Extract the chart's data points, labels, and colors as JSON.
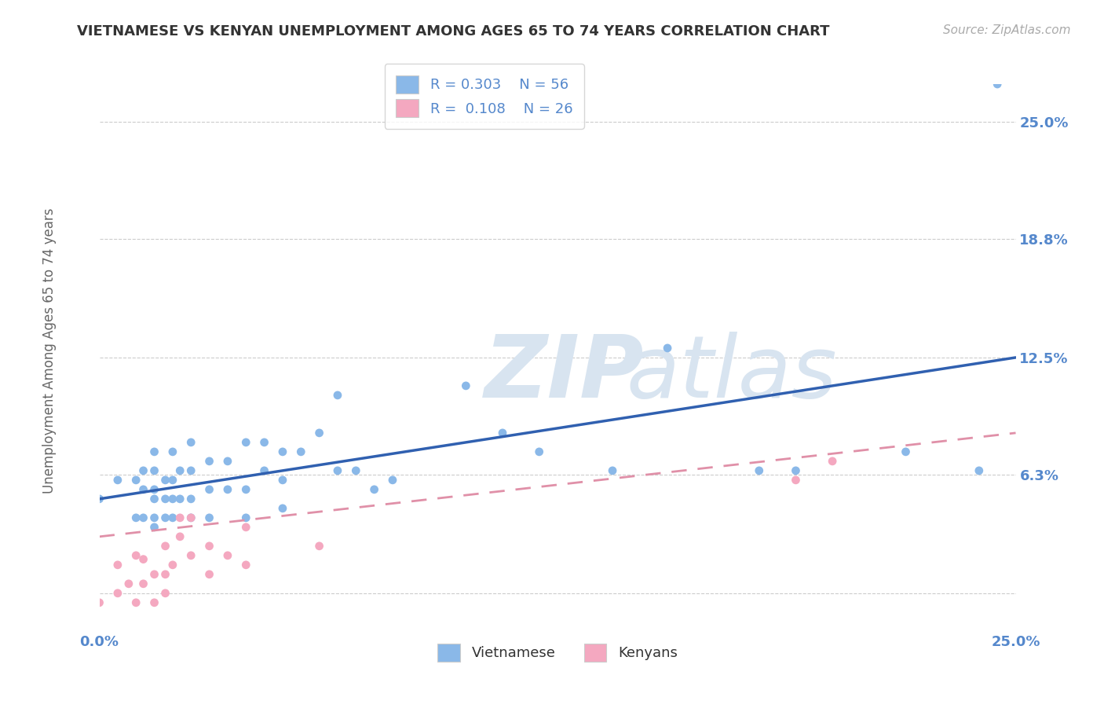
{
  "title": "VIETNAMESE VS KENYAN UNEMPLOYMENT AMONG AGES 65 TO 74 YEARS CORRELATION CHART",
  "source": "Source: ZipAtlas.com",
  "ylabel": "Unemployment Among Ages 65 to 74 years",
  "xlim": [
    0.0,
    0.25
  ],
  "ylim": [
    -0.02,
    0.27
  ],
  "xticks": [
    0.0,
    0.25
  ],
  "xticklabels": [
    "0.0%",
    "25.0%"
  ],
  "ytick_positions": [
    0.0,
    0.063,
    0.125,
    0.188,
    0.25
  ],
  "ytick_labels": [
    "",
    "6.3%",
    "12.5%",
    "18.8%",
    "25.0%"
  ],
  "background_color": "#ffffff",
  "viet_color": "#8ab8e8",
  "kenya_color": "#f4a8c0",
  "viet_line_color": "#3060b0",
  "kenya_line_color": "#e090a8",
  "viet_points_x": [
    0.0,
    0.005,
    0.01,
    0.01,
    0.012,
    0.012,
    0.012,
    0.015,
    0.015,
    0.015,
    0.015,
    0.015,
    0.015,
    0.018,
    0.018,
    0.018,
    0.02,
    0.02,
    0.02,
    0.02,
    0.022,
    0.022,
    0.025,
    0.025,
    0.025,
    0.025,
    0.03,
    0.03,
    0.03,
    0.035,
    0.035,
    0.04,
    0.04,
    0.04,
    0.045,
    0.045,
    0.05,
    0.05,
    0.05,
    0.055,
    0.06,
    0.065,
    0.065,
    0.07,
    0.075,
    0.08,
    0.1,
    0.11,
    0.12,
    0.14,
    0.155,
    0.18,
    0.19,
    0.22,
    0.24,
    0.245
  ],
  "viet_points_y": [
    0.05,
    0.06,
    0.04,
    0.06,
    0.04,
    0.055,
    0.065,
    0.035,
    0.04,
    0.05,
    0.055,
    0.065,
    0.075,
    0.04,
    0.05,
    0.06,
    0.04,
    0.05,
    0.06,
    0.075,
    0.05,
    0.065,
    0.04,
    0.05,
    0.065,
    0.08,
    0.04,
    0.055,
    0.07,
    0.055,
    0.07,
    0.04,
    0.055,
    0.08,
    0.065,
    0.08,
    0.045,
    0.06,
    0.075,
    0.075,
    0.085,
    0.065,
    0.105,
    0.065,
    0.055,
    0.06,
    0.11,
    0.085,
    0.075,
    0.065,
    0.13,
    0.065,
    0.065,
    0.075,
    0.065,
    0.27
  ],
  "kenya_points_x": [
    0.0,
    0.005,
    0.005,
    0.008,
    0.01,
    0.01,
    0.012,
    0.012,
    0.015,
    0.015,
    0.018,
    0.018,
    0.018,
    0.02,
    0.022,
    0.022,
    0.025,
    0.025,
    0.03,
    0.03,
    0.035,
    0.04,
    0.04,
    0.06,
    0.19,
    0.2
  ],
  "kenya_points_y": [
    -0.005,
    0.0,
    0.015,
    0.005,
    -0.005,
    0.02,
    0.005,
    0.018,
    -0.005,
    0.01,
    0.0,
    0.01,
    0.025,
    0.015,
    0.03,
    0.04,
    0.02,
    0.04,
    0.01,
    0.025,
    0.02,
    0.015,
    0.035,
    0.025,
    0.06,
    0.07
  ],
  "grid_color": "#cccccc",
  "title_color": "#333333",
  "tick_color": "#5588cc",
  "watermark_color": "#d8e4f0"
}
